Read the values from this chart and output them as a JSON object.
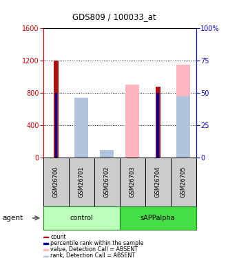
{
  "title": "GDS809 / 100033_at",
  "samples": [
    "GSM26700",
    "GSM26701",
    "GSM26702",
    "GSM26703",
    "GSM26704",
    "GSM26705"
  ],
  "count_values": [
    1200,
    0,
    0,
    0,
    880,
    0
  ],
  "percentile_values_scaled": [
    800,
    0,
    0,
    0,
    800,
    0
  ],
  "absent_value_values": [
    0,
    680,
    80,
    900,
    0,
    1150
  ],
  "absent_rank_values": [
    0,
    740,
    90,
    0,
    0,
    760
  ],
  "ylim_left": [
    0,
    1600
  ],
  "ylim_right": [
    0,
    100
  ],
  "yticks_left": [
    0,
    400,
    800,
    1200,
    1600
  ],
  "yticks_right": [
    0,
    25,
    50,
    75,
    100
  ],
  "yticklabels_right": [
    "0",
    "25",
    "50",
    "75",
    "100%"
  ],
  "color_count": "#aa1111",
  "color_percentile": "#000099",
  "color_absent_value": "#ffb6c1",
  "color_absent_rank": "#b0c4de",
  "sample_bg_color": "#cccccc",
  "left_axis_color": "#cc0000",
  "right_axis_color": "#0000cc",
  "ctrl_color": "#bbffbb",
  "sapp_color": "#44dd44"
}
